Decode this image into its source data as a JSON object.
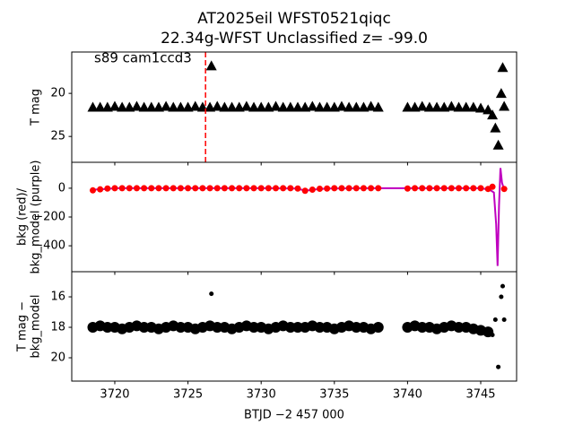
{
  "chart_data": [
    {
      "type": "scatter",
      "title": [
        "AT2025eil  WFST0521qiqc",
        "22.34g-WFST Unclassified z= -99.0"
      ],
      "annotation": "s89 cam1ccd3",
      "ylabel": [
        "T mag"
      ],
      "marker": "triangle",
      "color": "#000000",
      "vline": 3726.2,
      "vline_color": "#ff0000",
      "xlim": [
        3717.06,
        3747.45
      ],
      "ylim": [
        28.0,
        15.2
      ],
      "yticks": [
        20,
        25
      ],
      "xticks": [
        3720,
        3725,
        3730,
        3735,
        3740,
        3745
      ],
      "x": [
        3718.5,
        3719,
        3719.5,
        3720,
        3720.5,
        3721,
        3721.5,
        3722,
        3722.5,
        3723,
        3723.5,
        3724,
        3724.5,
        3725,
        3725.5,
        3726,
        3726.5,
        3727,
        3727.5,
        3728,
        3728.5,
        3729,
        3729.5,
        3730,
        3730.5,
        3731,
        3731.5,
        3732,
        3732.5,
        3733,
        3733.5,
        3734,
        3734.5,
        3735,
        3735.5,
        3736,
        3736.5,
        3737,
        3737.5,
        3738,
        3740,
        3740.5,
        3741,
        3741.5,
        3742,
        3742.5,
        3743,
        3743.5,
        3744,
        3744.5,
        3745,
        3745.5,
        3726.6,
        3745.8,
        3746.0,
        3746.2,
        3746.4,
        3746.5,
        3746.6
      ],
      "values": [
        21.6,
        21.6,
        21.6,
        21.5,
        21.6,
        21.6,
        21.5,
        21.6,
        21.6,
        21.6,
        21.5,
        21.6,
        21.6,
        21.6,
        21.5,
        21.6,
        21.6,
        21.5,
        21.6,
        21.6,
        21.6,
        21.5,
        21.6,
        21.6,
        21.6,
        21.5,
        21.6,
        21.6,
        21.6,
        21.6,
        21.5,
        21.6,
        21.6,
        21.6,
        21.5,
        21.6,
        21.6,
        21.6,
        21.5,
        21.6,
        21.6,
        21.6,
        21.5,
        21.6,
        21.6,
        21.6,
        21.5,
        21.6,
        21.6,
        21.6,
        21.7,
        21.9,
        16.8,
        22.5,
        24.0,
        26.0,
        20.0,
        17.0,
        21.5
      ]
    },
    {
      "type": "scatter",
      "ylabel": [
        "bkg (red)/",
        "bkg_model (purple)"
      ],
      "marker": "circle",
      "color": "#ff0000",
      "xlim": [
        3717.06,
        3747.45
      ],
      "ylim": [
        -580,
        180
      ],
      "yticks": [
        0,
        {
          "value": -200,
          "label": "−200"
        },
        {
          "value": -400,
          "label": "−400"
        }
      ],
      "xticks": [
        3720,
        3725,
        3730,
        3735,
        3740,
        3745
      ],
      "x": [
        3718.5,
        3719,
        3719.5,
        3720,
        3720.5,
        3721,
        3721.5,
        3722,
        3722.5,
        3723,
        3723.5,
        3724,
        3724.5,
        3725,
        3725.5,
        3726,
        3726.5,
        3727,
        3727.5,
        3728,
        3728.5,
        3729,
        3729.5,
        3730,
        3730.5,
        3731,
        3731.5,
        3732,
        3732.5,
        3733,
        3733.5,
        3734,
        3734.5,
        3735,
        3735.5,
        3736,
        3736.5,
        3737,
        3737.5,
        3738,
        3740,
        3740.5,
        3741,
        3741.5,
        3742,
        3742.5,
        3743,
        3743.5,
        3744,
        3744.5,
        3745,
        3745.5,
        3745.8,
        3746.6
      ],
      "values": [
        -15,
        -8,
        -2,
        0,
        0,
        0,
        0,
        0,
        0,
        0,
        0,
        0,
        0,
        0,
        0,
        0,
        0,
        0,
        0,
        0,
        0,
        0,
        0,
        0,
        0,
        0,
        0,
        0,
        -2,
        -18,
        -10,
        -4,
        -2,
        0,
        0,
        0,
        0,
        0,
        0,
        0,
        -2,
        0,
        0,
        0,
        0,
        0,
        0,
        0,
        0,
        0,
        0,
        -5,
        10,
        -5
      ],
      "model": {
        "color": "#bf00bf",
        "x": [
          3718.5,
          3719.5,
          3720,
          3725,
          3730,
          3732.5,
          3733,
          3733.5,
          3734.5,
          3738,
          3740,
          3745,
          3745.6,
          3745.9,
          3746.05,
          3746.15,
          3746.25,
          3746.35,
          3746.45,
          3746.6,
          3746.8
        ],
        "values": [
          -10,
          -5,
          0,
          0,
          0,
          -2,
          -18,
          -10,
          -2,
          0,
          0,
          0,
          -10,
          -30,
          -250,
          -540,
          -120,
          140,
          40,
          -10,
          0
        ]
      }
    },
    {
      "type": "scatter",
      "ylabel": [
        "T mag −",
        "bkg_model"
      ],
      "xlabel": "BTJD −2 457 000",
      "marker": "circle",
      "color": "#000000",
      "xlim": [
        3717.06,
        3747.45
      ],
      "ylim": [
        21.53,
        14.35
      ],
      "yticks": [
        16,
        18,
        20
      ],
      "xticks": [
        3720,
        3725,
        3730,
        3735,
        3740,
        3745
      ],
      "x": [
        3718.5,
        3719,
        3719.5,
        3720,
        3720.5,
        3721,
        3721.5,
        3722,
        3722.5,
        3723,
        3723.5,
        3724,
        3724.5,
        3725,
        3725.5,
        3726,
        3726.5,
        3727,
        3727.5,
        3728,
        3728.5,
        3729,
        3729.5,
        3730,
        3730.5,
        3731,
        3731.5,
        3732,
        3732.5,
        3733,
        3733.5,
        3734,
        3734.5,
        3735,
        3735.5,
        3736,
        3736.5,
        3737,
        3737.5,
        3738,
        3740,
        3740.5,
        3741,
        3741.5,
        3742,
        3742.5,
        3743,
        3743.5,
        3744,
        3744.5,
        3745,
        3745.5,
        3726.6,
        3745.8,
        3746.0,
        3746.2,
        3746.4,
        3746.5,
        3746.6
      ],
      "values": [
        18.0,
        17.9,
        18.0,
        18.0,
        18.1,
        18.0,
        17.9,
        18.0,
        18.0,
        18.1,
        18.0,
        17.9,
        18.0,
        18.0,
        18.1,
        18.0,
        17.9,
        18.0,
        18.0,
        18.1,
        18.0,
        17.9,
        18.0,
        18.0,
        18.1,
        18.0,
        17.9,
        18.0,
        18.0,
        18.0,
        17.9,
        18.0,
        18.0,
        18.1,
        18.0,
        17.9,
        18.0,
        18.0,
        18.1,
        18.0,
        18.0,
        17.9,
        18.0,
        18.0,
        18.1,
        18.0,
        17.9,
        18.0,
        18.0,
        18.1,
        18.2,
        18.3,
        15.8,
        18.5,
        17.5,
        20.6,
        16.0,
        15.3,
        17.5
      ]
    }
  ]
}
